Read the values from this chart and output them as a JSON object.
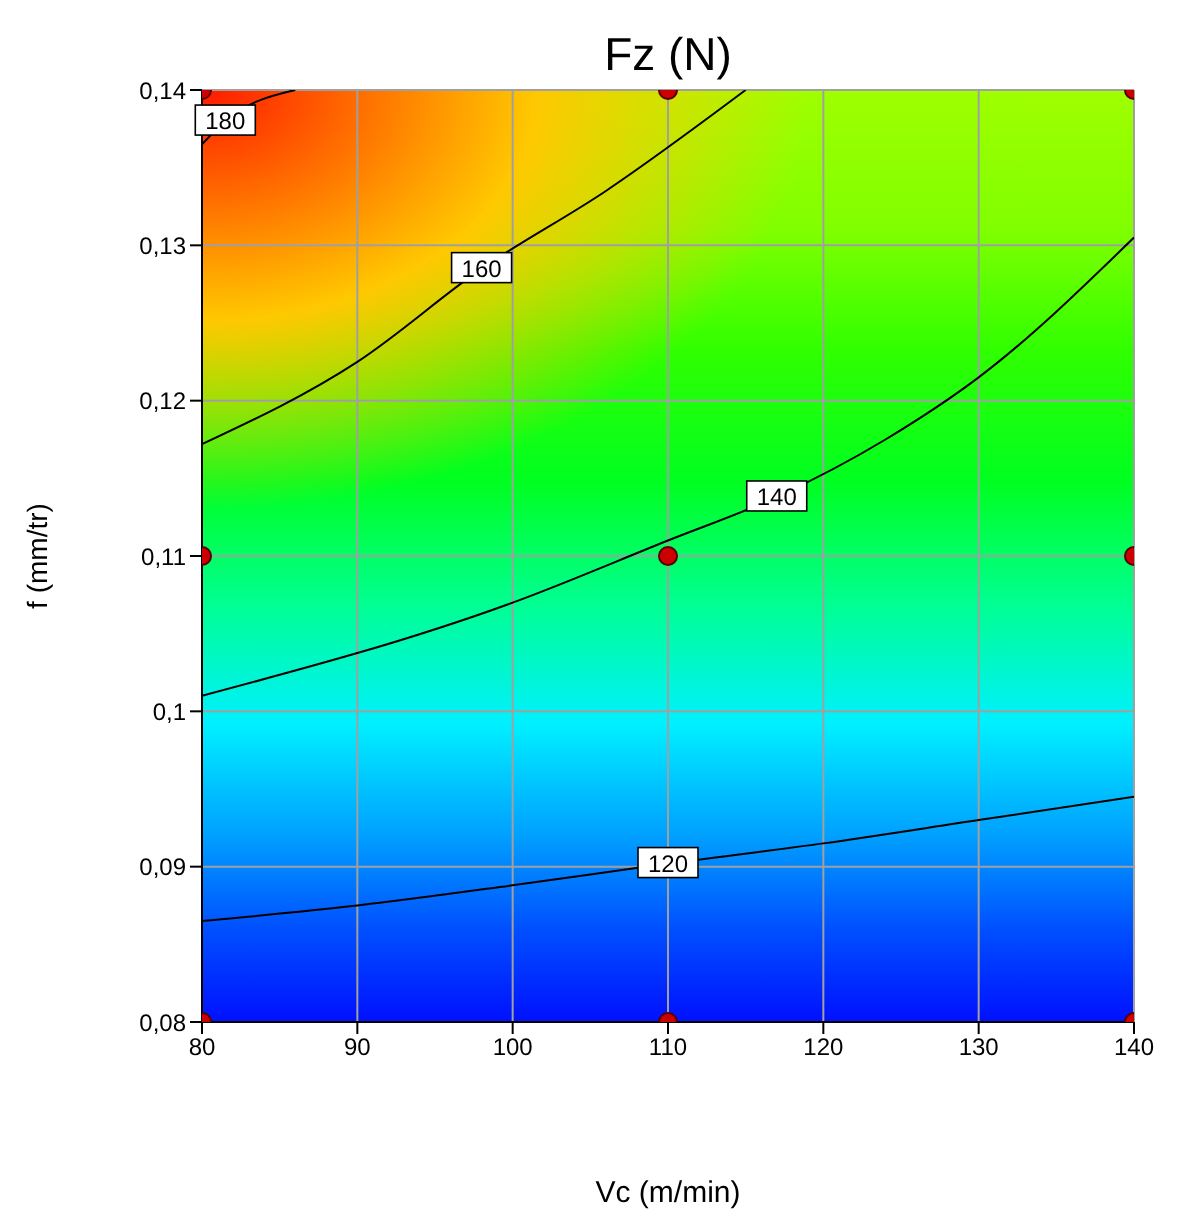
{
  "chart_data": {
    "type": "line",
    "title": "Fz (N)",
    "xlabel": "Vc (m/min)",
    "ylabel": "f (mm/tr)",
    "xlim": [
      80,
      140
    ],
    "xticks": [
      80,
      90,
      100,
      110,
      120,
      130,
      140
    ],
    "ylim": [
      0.08,
      0.14
    ],
    "yticks": [
      {
        "value": 0.08,
        "label": "0,08"
      },
      {
        "value": 0.09,
        "label": "0,09"
      },
      {
        "value": 0.1,
        "label": "0,1"
      },
      {
        "value": 0.11,
        "label": "0,11"
      },
      {
        "value": 0.12,
        "label": "0,12"
      },
      {
        "value": 0.13,
        "label": "0,13"
      },
      {
        "value": 0.14,
        "label": "0,14"
      }
    ],
    "grid": true,
    "series": [
      {
        "name": "180",
        "color": "#000000",
        "marker": "none",
        "x": [
          80,
          81.5,
          86
        ],
        "values": [
          0.1365,
          0.138,
          0.14
        ]
      },
      {
        "name": "160",
        "color": "#000000",
        "marker": "none",
        "x": [
          80,
          90,
          98,
          106,
          115
        ],
        "values": [
          0.1172,
          0.1225,
          0.1285,
          0.1335,
          0.14
        ]
      },
      {
        "name": "140",
        "color": "#000000",
        "marker": "none",
        "x": [
          80,
          100,
          110,
          117,
          124,
          130,
          140
        ],
        "values": [
          0.101,
          0.107,
          0.111,
          0.1138,
          0.1175,
          0.1215,
          0.1305
        ]
      },
      {
        "name": "120",
        "color": "#000000",
        "marker": "none",
        "x": [
          80,
          90,
          100,
          110,
          120,
          130,
          140
        ],
        "values": [
          0.0865,
          0.0875,
          0.0888,
          0.0902,
          0.0915,
          0.093,
          0.0945
        ]
      },
      {
        "type": "scatter",
        "color": "#cc0000",
        "marker": "circle",
        "x": [
          80,
          80,
          80,
          110,
          110,
          110,
          140,
          140,
          140
        ],
        "values": [
          0.08,
          0.11,
          0.14,
          0.08,
          0.11,
          0.14,
          0.08,
          0.11,
          0.14
        ]
      }
    ]
  }
}
